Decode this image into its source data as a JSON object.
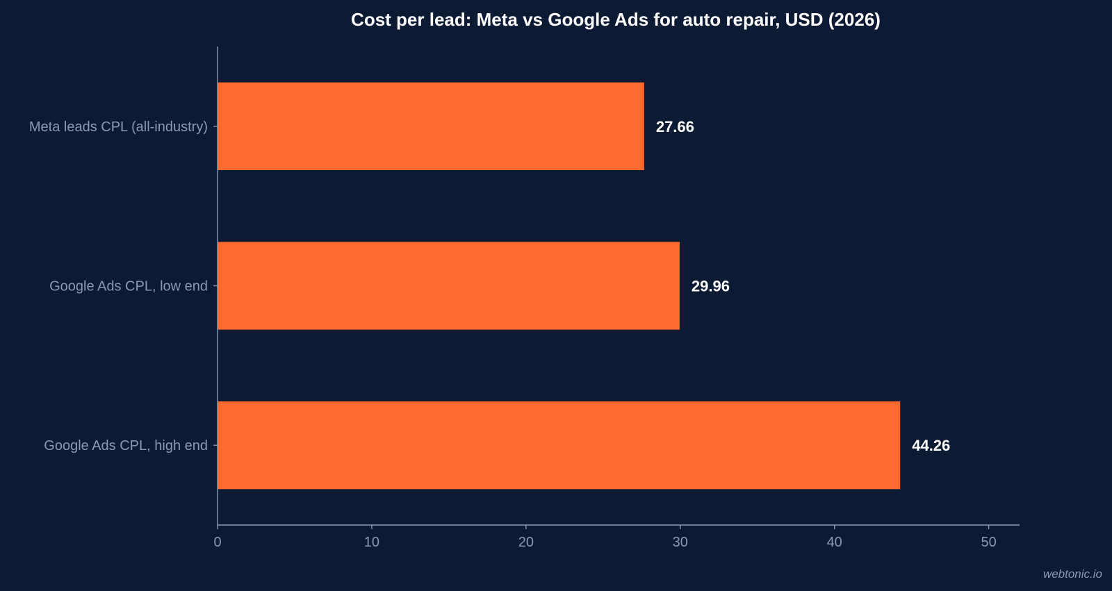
{
  "chart_data": {
    "type": "bar",
    "orientation": "horizontal",
    "title": "Cost per lead: Meta vs Google Ads for auto repair, USD (2026)",
    "categories": [
      "Meta leads CPL (all-industry)",
      "Google Ads CPL, low end",
      "Google Ads CPL, high end"
    ],
    "values": [
      27.66,
      29.96,
      44.26
    ],
    "data_labels": [
      "27.66",
      "29.96",
      "44.26"
    ],
    "xlabel": "",
    "ylabel": "",
    "xlim": [
      0,
      52
    ],
    "x_ticks": [
      0,
      10,
      20,
      30,
      40,
      50
    ],
    "grid": false,
    "legend": "none",
    "bar_color": "#ff6b2f",
    "background_color": "#0c1b33",
    "text_color": "#8a9ab5"
  },
  "watermark": "webtonic.io"
}
